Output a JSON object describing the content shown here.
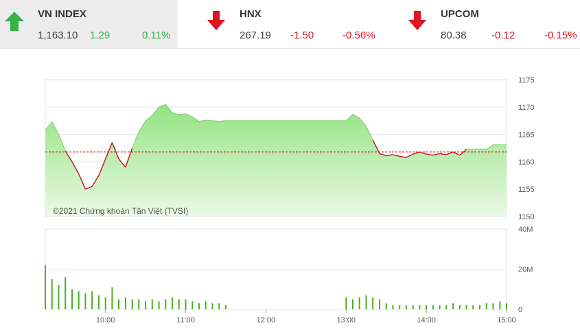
{
  "tickers": [
    {
      "name": "VN INDEX",
      "value": "1,163.10",
      "change": "1.29",
      "percent": "0.11%",
      "direction": "up",
      "color": "#37b34a"
    },
    {
      "name": "HNX",
      "value": "267.19",
      "change": "-1.50",
      "percent": "-0.56%",
      "direction": "down",
      "color": "#e0141e"
    },
    {
      "name": "UPCOM",
      "value": "80.38",
      "change": "-0.12",
      "percent": "-0.15%",
      "direction": "down",
      "color": "#e0141e"
    }
  ],
  "colors": {
    "up": "#37b34a",
    "down": "#e0141e",
    "reference_line": "#e0141e",
    "area_fill": "#9be88a",
    "bar": "#4caf1e"
  },
  "chart_data": [
    {
      "type": "area",
      "copyright": "©2021 Chứng khoán Tân Việt (TVSI)",
      "reference": 1161.81,
      "ylim": [
        1150,
        1175
      ],
      "yticks": [
        1175,
        1170,
        1165,
        1160,
        1155,
        1150
      ],
      "grid": true,
      "x": [
        "09:15",
        "09:20",
        "09:25",
        "09:30",
        "09:35",
        "09:40",
        "09:45",
        "09:50",
        "09:55",
        "10:00",
        "10:05",
        "10:10",
        "10:15",
        "10:20",
        "10:25",
        "10:30",
        "10:35",
        "10:40",
        "10:45",
        "10:50",
        "10:55",
        "11:00",
        "11:05",
        "11:10",
        "11:15",
        "11:20",
        "11:25",
        "11:30",
        "13:00",
        "13:05",
        "13:10",
        "13:15",
        "13:20",
        "13:25",
        "13:30",
        "13:35",
        "13:40",
        "13:45",
        "13:50",
        "13:55",
        "14:00",
        "14:05",
        "14:10",
        "14:15",
        "14:20",
        "14:25",
        "14:30",
        "14:35",
        "14:40",
        "14:45",
        "14:50",
        "14:55",
        "15:00"
      ],
      "values": [
        1165.8,
        1167.3,
        1165.0,
        1162.0,
        1160.0,
        1157.8,
        1155.0,
        1155.5,
        1157.5,
        1160.5,
        1163.5,
        1160.5,
        1159.0,
        1162.5,
        1165.5,
        1167.5,
        1168.5,
        1170.0,
        1170.5,
        1169.0,
        1168.6,
        1168.8,
        1168.2,
        1167.4,
        1167.6,
        1167.5,
        1167.4,
        1167.5,
        1167.5,
        1168.7,
        1168.0,
        1166.5,
        1164.0,
        1161.5,
        1161.1,
        1161.3,
        1161.0,
        1160.8,
        1161.4,
        1161.8,
        1161.4,
        1161.2,
        1161.5,
        1161.3,
        1161.8,
        1161.2,
        1162.3,
        1162.3,
        1162.3,
        1162.3,
        1163.1,
        1163.1,
        1163.1
      ],
      "xticks": [
        "10:00",
        "11:00",
        "12:00",
        "13:00",
        "14:00",
        "15:00"
      ]
    },
    {
      "type": "bar",
      "ylim": [
        0,
        40
      ],
      "yticks": [
        "40M",
        "20M",
        "0"
      ],
      "grid": true,
      "x": [
        "09:15",
        "09:20",
        "09:25",
        "09:30",
        "09:35",
        "09:40",
        "09:45",
        "09:50",
        "09:55",
        "10:00",
        "10:05",
        "10:10",
        "10:15",
        "10:20",
        "10:25",
        "10:30",
        "10:35",
        "10:40",
        "10:45",
        "10:50",
        "10:55",
        "11:00",
        "11:05",
        "11:10",
        "11:15",
        "11:20",
        "11:25",
        "11:30",
        "13:00",
        "13:05",
        "13:10",
        "13:15",
        "13:20",
        "13:25",
        "13:30",
        "13:35",
        "13:40",
        "13:45",
        "13:50",
        "13:55",
        "14:00",
        "14:05",
        "14:10",
        "14:15",
        "14:20",
        "14:25",
        "14:30",
        "14:35",
        "14:40",
        "14:45",
        "14:50",
        "14:55",
        "15:00"
      ],
      "values": [
        22,
        15,
        12,
        16,
        10,
        9,
        8,
        9,
        7,
        6,
        11,
        5,
        6,
        5,
        5,
        4,
        5,
        4,
        5,
        6,
        5,
        5,
        4,
        3,
        4,
        3,
        3,
        2,
        6,
        5,
        6,
        7,
        6,
        5,
        3,
        2,
        2,
        2,
        2,
        2,
        2,
        2,
        2,
        2,
        3,
        2,
        2,
        2,
        2,
        3,
        3,
        4,
        3
      ],
      "unit": "M"
    }
  ]
}
